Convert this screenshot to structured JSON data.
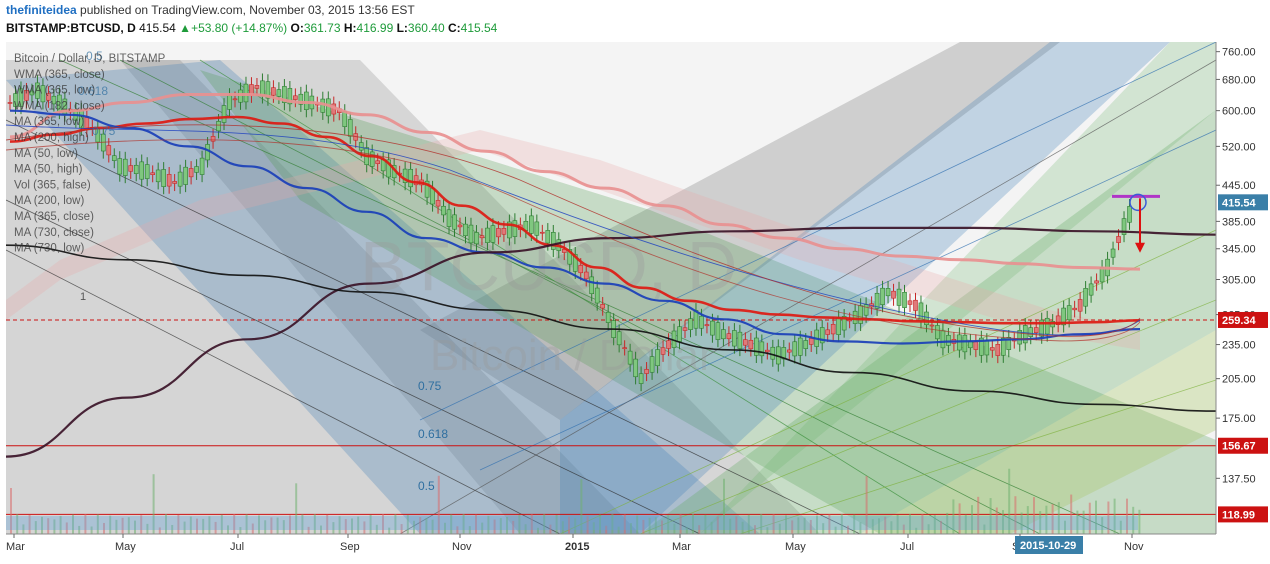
{
  "header": {
    "author": "thefiniteidea",
    "published_text": "published on TradingView.com, November 03, 2015 13:56 EST",
    "symbol": "BITSTAMP:BTCUSD, D",
    "last": "415.54",
    "change": "+53.80 (+14.87%)",
    "open_label": "O:",
    "open": "361.73",
    "high_label": "H:",
    "high": "416.99",
    "low_label": "L:",
    "low": "360.40",
    "close_label": "C:",
    "close": "415.54"
  },
  "legend": [
    "Bitcoin / Dollar, D, BITSTAMP",
    "WMA (365, close)",
    "WMA (365, low)",
    "WMA (182, close)",
    "MA (365, low)",
    "MA (200, high)",
    "MA (50, low)",
    "MA (50, high)",
    "Vol (365, false)",
    "MA (200, low)",
    "MA (365, close)",
    "MA (730, close)",
    "MA (730, low)"
  ],
  "watermark": {
    "symbol": "BTCUSD, D",
    "name": "Bitcoin / Dollar"
  },
  "fib_labels": [
    "0.75",
    "0.618",
    "0.5"
  ],
  "fib_labels_top": [
    "0.5",
    "0.618",
    "0.75"
  ],
  "fib_label_left": "1",
  "colors": {
    "price_tag": "#3a7fa8",
    "red_line": "#cc1111",
    "up": "#2e7d32",
    "down": "#c62828",
    "ma_blue": "#1a3fb8",
    "ma_red": "#dd1a12",
    "ma_dark": "#3b1428",
    "purple": "#b035c7"
  },
  "chart_data": {
    "type": "line",
    "title": "Bitcoin / Dollar, D, BITSTAMP",
    "x_ticks": [
      "Mar",
      "May",
      "Jul",
      "Sep",
      "Nov",
      "2015",
      "Mar",
      "May",
      "Jul",
      "Sep",
      "Nov"
    ],
    "y_ticks": [
      760,
      680,
      600,
      520,
      445,
      385,
      345,
      305,
      265,
      235,
      205,
      175,
      137.5
    ],
    "ylim": [
      110,
      790
    ],
    "y_scale": "log",
    "price_labels": [
      {
        "text": "415.54",
        "value": 415.54,
        "color": "#3a7fa8"
      },
      {
        "text": "259.34",
        "value": 259.34,
        "color": "#cc1111"
      },
      {
        "text": "156.67",
        "value": 156.67,
        "color": "#cc1111"
      },
      {
        "text": "118.99",
        "value": 118.99,
        "color": "#cc1111"
      }
    ],
    "date_tag": "2015-10-29",
    "series": [
      {
        "name": "Bitcoin / Dollar",
        "values": [
          620,
          650,
          610,
          560,
          480,
          470,
          450,
          480,
          620,
          660,
          640,
          620,
          600,
          500,
          470,
          450,
          390,
          360,
          370,
          380,
          350,
          310,
          250,
          205,
          235,
          260,
          245,
          235,
          225,
          235,
          250,
          265,
          290,
          275,
          240,
          235,
          230,
          245,
          255,
          275,
          320,
          415
        ]
      },
      {
        "name": "MA (200, high)",
        "values": [
          530,
          545,
          560,
          570,
          580,
          585,
          570,
          540,
          500,
          450,
          410,
          380,
          350,
          320,
          295,
          280,
          270,
          265,
          262,
          260,
          258,
          257,
          256,
          256,
          257,
          259
        ]
      },
      {
        "name": "MA (365, low)",
        "values": [
          540,
          600,
          620,
          640,
          640,
          620,
          590,
          550,
          510,
          470,
          440,
          410,
          380,
          360,
          345,
          335,
          330,
          325,
          320,
          318
        ]
      },
      {
        "name": "MA (50, low)",
        "values": [
          600,
          590,
          560,
          520,
          480,
          440,
          400,
          360,
          340,
          320,
          300,
          280,
          260,
          245,
          238,
          236,
          238,
          240,
          245,
          250
        ]
      },
      {
        "name": "MA (730, close)",
        "values": [
          150,
          190,
          240,
          300,
          340,
          360,
          370,
          375,
          375,
          370,
          365
        ]
      },
      {
        "name": "MA (730, low)",
        "values": [
          350,
          330,
          310,
          290,
          270,
          250,
          230,
          210,
          195,
          185,
          180
        ]
      }
    ]
  }
}
